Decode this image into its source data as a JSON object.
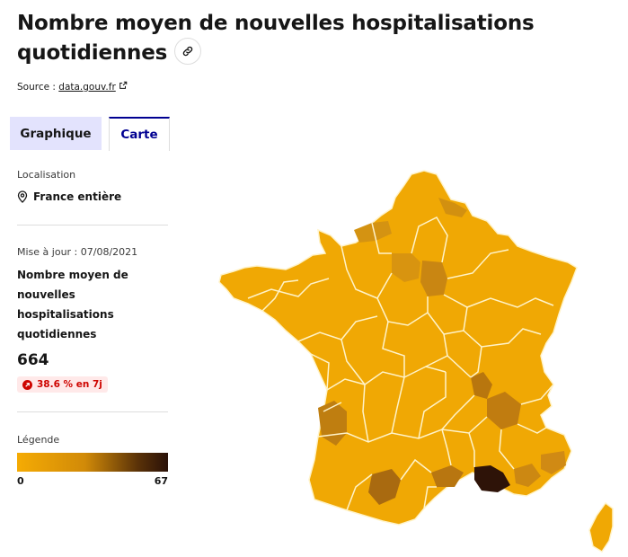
{
  "header": {
    "title": "Nombre moyen de nouvelles hospitalisations quotidiennes",
    "source_prefix": "Source : ",
    "source_link": "data.gouv.fr"
  },
  "tabs": [
    {
      "label": "Graphique",
      "active": false
    },
    {
      "label": "Carte",
      "active": true
    }
  ],
  "sidebar": {
    "location_label": "Localisation",
    "location_value": "France entière",
    "update_label": "Mise à jour : 07/08/2021",
    "indicator_name": "Nombre moyen de nouvelles hospitalisations quotidiennes",
    "indicator_value": "664",
    "trend_badge": "38.6 % en 7j",
    "legend_label": "Légende",
    "legend_min": "0",
    "legend_max": "67"
  },
  "colors": {
    "accent": "#000091",
    "scale_low": "#f5ab04",
    "scale_mid": "#c07a0e",
    "scale_high": "#2a1108",
    "trend_red": "#ce0500"
  }
}
